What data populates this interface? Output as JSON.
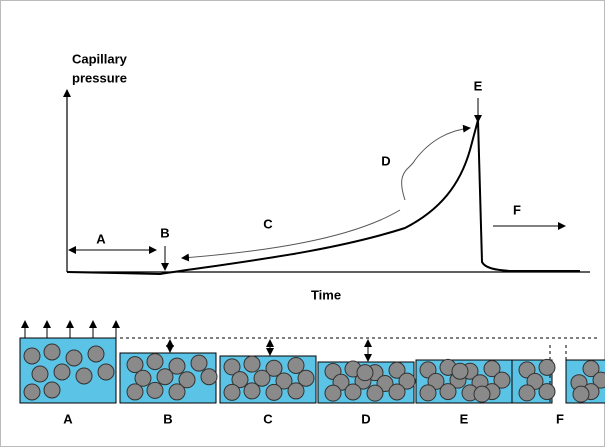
{
  "graph": {
    "y_axis_label": [
      "Capillary",
      "pressure"
    ],
    "x_axis_label": "Time",
    "stage_labels": [
      "A",
      "B",
      "C",
      "D",
      "E",
      "F"
    ]
  },
  "panels": {
    "labels": [
      "A",
      "B",
      "C",
      "D",
      "E",
      "F"
    ]
  }
}
